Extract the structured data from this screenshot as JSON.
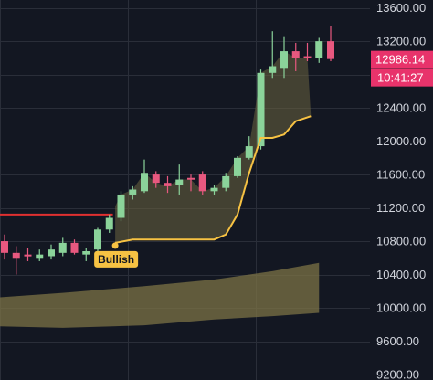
{
  "chart_data": {
    "type": "candlestick",
    "y_ticks": [
      "13600.00",
      "13200.00",
      "12800.00",
      "12400.00",
      "12000.00",
      "11600.00",
      "11200.00",
      "10800.00",
      "10400.00",
      "10000.00",
      "9600.00",
      "9200.00"
    ],
    "ylim": [
      9200,
      13640
    ],
    "grid": true,
    "candles": [
      {
        "o": 10800,
        "h": 10880,
        "l": 10580,
        "c": 10660
      },
      {
        "o": 10660,
        "h": 10740,
        "l": 10400,
        "c": 10600
      },
      {
        "o": 10640,
        "h": 10720,
        "l": 10560,
        "c": 10620
      },
      {
        "o": 10600,
        "h": 10700,
        "l": 10560,
        "c": 10640
      },
      {
        "o": 10620,
        "h": 10760,
        "l": 10580,
        "c": 10700
      },
      {
        "o": 10660,
        "h": 10840,
        "l": 10620,
        "c": 10780
      },
      {
        "o": 10780,
        "h": 10820,
        "l": 10640,
        "c": 10660
      },
      {
        "o": 10640,
        "h": 10720,
        "l": 10560,
        "c": 10680
      },
      {
        "o": 10700,
        "h": 10960,
        "l": 10680,
        "c": 10940
      },
      {
        "o": 10940,
        "h": 11120,
        "l": 10900,
        "c": 11080
      },
      {
        "o": 11080,
        "h": 11400,
        "l": 11040,
        "c": 11360
      },
      {
        "o": 11360,
        "h": 11460,
        "l": 11300,
        "c": 11420
      },
      {
        "o": 11400,
        "h": 11780,
        "l": 11380,
        "c": 11620
      },
      {
        "o": 11600,
        "h": 11640,
        "l": 11440,
        "c": 11500
      },
      {
        "o": 11500,
        "h": 11580,
        "l": 11380,
        "c": 11460
      },
      {
        "o": 11480,
        "h": 11720,
        "l": 11360,
        "c": 11540
      },
      {
        "o": 11560,
        "h": 11600,
        "l": 11400,
        "c": 11540
      },
      {
        "o": 11600,
        "h": 11640,
        "l": 11360,
        "c": 11400
      },
      {
        "o": 11400,
        "h": 11480,
        "l": 11360,
        "c": 11440
      },
      {
        "o": 11440,
        "h": 11620,
        "l": 11400,
        "c": 11580
      },
      {
        "o": 11580,
        "h": 11820,
        "l": 11560,
        "c": 11800
      },
      {
        "o": 11800,
        "h": 12060,
        "l": 11780,
        "c": 11940
      },
      {
        "o": 11940,
        "h": 12860,
        "l": 11900,
        "c": 12820
      },
      {
        "o": 12820,
        "h": 13320,
        "l": 12760,
        "c": 12900
      },
      {
        "o": 12880,
        "h": 13260,
        "l": 12760,
        "c": 13080
      },
      {
        "o": 13080,
        "h": 13180,
        "l": 12840,
        "c": 13000
      },
      {
        "o": 13020,
        "h": 13180,
        "l": 12960,
        "c": 13000
      },
      {
        "o": 13000,
        "h": 13240,
        "l": 12940,
        "c": 13200
      },
      {
        "o": 13200,
        "h": 13380,
        "l": 12960,
        "c": 12986.14
      }
    ],
    "stop_line": [
      {
        "i": 9.5,
        "v": 10780
      },
      {
        "i": 11,
        "v": 10820
      },
      {
        "i": 12,
        "v": 10820
      },
      {
        "i": 18,
        "v": 10820
      },
      {
        "i": 19,
        "v": 10880
      },
      {
        "i": 20,
        "v": 11120
      },
      {
        "i": 21,
        "v": 11620
      },
      {
        "i": 22,
        "v": 12040
      },
      {
        "i": 23,
        "v": 12040
      },
      {
        "i": 24,
        "v": 12080
      },
      {
        "i": 25,
        "v": 12240
      },
      {
        "i": 26.3,
        "v": 12300
      }
    ],
    "red_line": {
      "from_i": -1,
      "to_i": 9.3,
      "v": 11120
    },
    "band": {
      "upper": [
        {
          "i": -1,
          "v": 10120
        },
        {
          "i": 5,
          "v": 10180
        },
        {
          "i": 12,
          "v": 10260
        },
        {
          "i": 18,
          "v": 10340
        },
        {
          "i": 23,
          "v": 10440
        },
        {
          "i": 27,
          "v": 10540
        }
      ],
      "lower": [
        {
          "i": -1,
          "v": 9780
        },
        {
          "i": 5,
          "v": 9760
        },
        {
          "i": 12,
          "v": 9790
        },
        {
          "i": 18,
          "v": 9860
        },
        {
          "i": 23,
          "v": 9900
        },
        {
          "i": 27,
          "v": 9940
        }
      ]
    },
    "annotation": {
      "label": "Bullish",
      "i": 9.5,
      "v": 10780
    },
    "last_price": {
      "price": "12986.14",
      "time": "10:41:27"
    },
    "colors": {
      "up": "#8bd39a",
      "down": "#e8587f",
      "stop": "#f7c243",
      "fill": "#6b6440",
      "band": "#7c7346",
      "red_line": "#e03030",
      "tag": "#e8336b",
      "background": "#131722"
    }
  }
}
